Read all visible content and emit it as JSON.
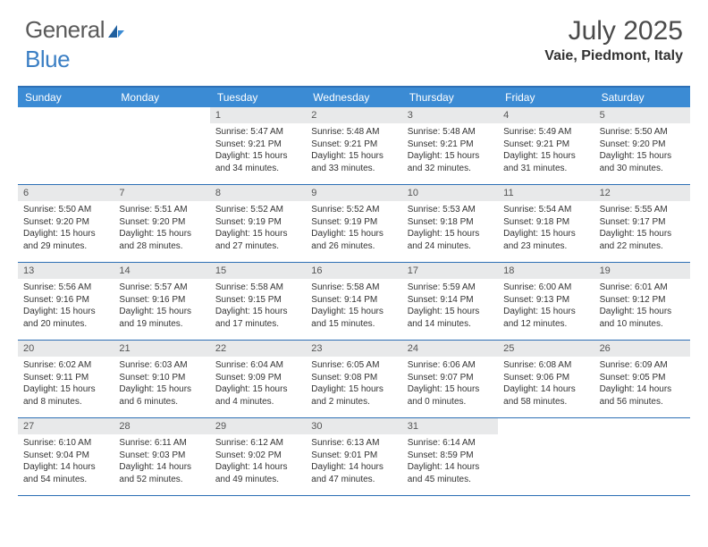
{
  "brand": {
    "part1": "General",
    "part2": "Blue"
  },
  "title": "July 2025",
  "location": "Vaie, Piedmont, Italy",
  "colors": {
    "header_bar": "#3b8bd4",
    "border": "#2d6fb5",
    "daynum_bg": "#e8e9ea",
    "text": "#333333",
    "logo_gray": "#5a5a5a",
    "logo_blue": "#3b7fc4"
  },
  "weekdays": [
    "Sunday",
    "Monday",
    "Tuesday",
    "Wednesday",
    "Thursday",
    "Friday",
    "Saturday"
  ],
  "first_weekday_index": 2,
  "days": [
    {
      "n": 1,
      "sunrise": "5:47 AM",
      "sunset": "9:21 PM",
      "daylight": "15 hours and 34 minutes."
    },
    {
      "n": 2,
      "sunrise": "5:48 AM",
      "sunset": "9:21 PM",
      "daylight": "15 hours and 33 minutes."
    },
    {
      "n": 3,
      "sunrise": "5:48 AM",
      "sunset": "9:21 PM",
      "daylight": "15 hours and 32 minutes."
    },
    {
      "n": 4,
      "sunrise": "5:49 AM",
      "sunset": "9:21 PM",
      "daylight": "15 hours and 31 minutes."
    },
    {
      "n": 5,
      "sunrise": "5:50 AM",
      "sunset": "9:20 PM",
      "daylight": "15 hours and 30 minutes."
    },
    {
      "n": 6,
      "sunrise": "5:50 AM",
      "sunset": "9:20 PM",
      "daylight": "15 hours and 29 minutes."
    },
    {
      "n": 7,
      "sunrise": "5:51 AM",
      "sunset": "9:20 PM",
      "daylight": "15 hours and 28 minutes."
    },
    {
      "n": 8,
      "sunrise": "5:52 AM",
      "sunset": "9:19 PM",
      "daylight": "15 hours and 27 minutes."
    },
    {
      "n": 9,
      "sunrise": "5:52 AM",
      "sunset": "9:19 PM",
      "daylight": "15 hours and 26 minutes."
    },
    {
      "n": 10,
      "sunrise": "5:53 AM",
      "sunset": "9:18 PM",
      "daylight": "15 hours and 24 minutes."
    },
    {
      "n": 11,
      "sunrise": "5:54 AM",
      "sunset": "9:18 PM",
      "daylight": "15 hours and 23 minutes."
    },
    {
      "n": 12,
      "sunrise": "5:55 AM",
      "sunset": "9:17 PM",
      "daylight": "15 hours and 22 minutes."
    },
    {
      "n": 13,
      "sunrise": "5:56 AM",
      "sunset": "9:16 PM",
      "daylight": "15 hours and 20 minutes."
    },
    {
      "n": 14,
      "sunrise": "5:57 AM",
      "sunset": "9:16 PM",
      "daylight": "15 hours and 19 minutes."
    },
    {
      "n": 15,
      "sunrise": "5:58 AM",
      "sunset": "9:15 PM",
      "daylight": "15 hours and 17 minutes."
    },
    {
      "n": 16,
      "sunrise": "5:58 AM",
      "sunset": "9:14 PM",
      "daylight": "15 hours and 15 minutes."
    },
    {
      "n": 17,
      "sunrise": "5:59 AM",
      "sunset": "9:14 PM",
      "daylight": "15 hours and 14 minutes."
    },
    {
      "n": 18,
      "sunrise": "6:00 AM",
      "sunset": "9:13 PM",
      "daylight": "15 hours and 12 minutes."
    },
    {
      "n": 19,
      "sunrise": "6:01 AM",
      "sunset": "9:12 PM",
      "daylight": "15 hours and 10 minutes."
    },
    {
      "n": 20,
      "sunrise": "6:02 AM",
      "sunset": "9:11 PM",
      "daylight": "15 hours and 8 minutes."
    },
    {
      "n": 21,
      "sunrise": "6:03 AM",
      "sunset": "9:10 PM",
      "daylight": "15 hours and 6 minutes."
    },
    {
      "n": 22,
      "sunrise": "6:04 AM",
      "sunset": "9:09 PM",
      "daylight": "15 hours and 4 minutes."
    },
    {
      "n": 23,
      "sunrise": "6:05 AM",
      "sunset": "9:08 PM",
      "daylight": "15 hours and 2 minutes."
    },
    {
      "n": 24,
      "sunrise": "6:06 AM",
      "sunset": "9:07 PM",
      "daylight": "15 hours and 0 minutes."
    },
    {
      "n": 25,
      "sunrise": "6:08 AM",
      "sunset": "9:06 PM",
      "daylight": "14 hours and 58 minutes."
    },
    {
      "n": 26,
      "sunrise": "6:09 AM",
      "sunset": "9:05 PM",
      "daylight": "14 hours and 56 minutes."
    },
    {
      "n": 27,
      "sunrise": "6:10 AM",
      "sunset": "9:04 PM",
      "daylight": "14 hours and 54 minutes."
    },
    {
      "n": 28,
      "sunrise": "6:11 AM",
      "sunset": "9:03 PM",
      "daylight": "14 hours and 52 minutes."
    },
    {
      "n": 29,
      "sunrise": "6:12 AM",
      "sunset": "9:02 PM",
      "daylight": "14 hours and 49 minutes."
    },
    {
      "n": 30,
      "sunrise": "6:13 AM",
      "sunset": "9:01 PM",
      "daylight": "14 hours and 47 minutes."
    },
    {
      "n": 31,
      "sunrise": "6:14 AM",
      "sunset": "8:59 PM",
      "daylight": "14 hours and 45 minutes."
    }
  ],
  "labels": {
    "sunrise": "Sunrise:",
    "sunset": "Sunset:",
    "daylight": "Daylight:"
  }
}
